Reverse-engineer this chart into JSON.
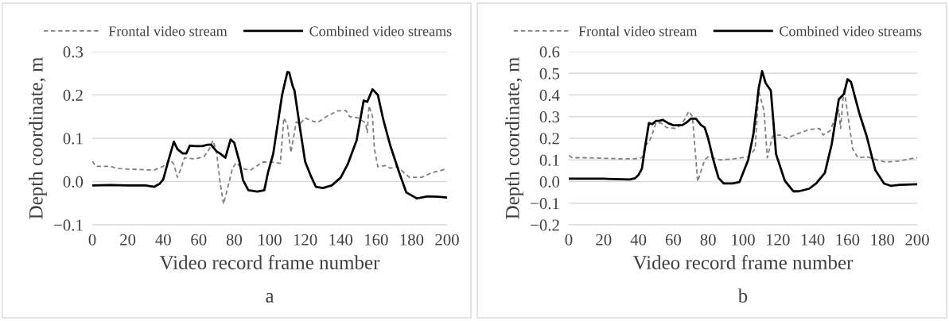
{
  "chart_data": [
    {
      "type": "line",
      "xlabel": "Video record frame number",
      "ylabel": "Depth coordinate, m",
      "annotations": [
        "a"
      ],
      "xlim": [
        0,
        200
      ],
      "xticks": [
        0,
        20,
        40,
        60,
        80,
        100,
        120,
        140,
        160,
        180,
        200
      ],
      "ylim": [
        -0.1,
        0.3
      ],
      "yticks": [
        {
          "value": -0.1,
          "label": "−0.1"
        },
        {
          "value": 0.0,
          "label": "0.0"
        },
        {
          "value": 0.1,
          "label": "0.1"
        },
        {
          "value": 0.2,
          "label": "0.2"
        },
        {
          "value": 0.3,
          "label": "0.3"
        }
      ],
      "grid": "y",
      "legend": "top",
      "marker": "none",
      "series": [
        {
          "name": "Frontal video stream",
          "color": "#808080",
          "line_style": "dashed",
          "x": [
            0,
            2,
            10,
            15,
            30,
            35,
            40,
            44,
            46,
            48,
            50,
            52,
            58,
            63,
            66,
            68,
            70,
            72,
            74,
            76,
            79,
            81,
            85,
            89,
            92,
            96,
            101,
            106,
            108,
            110,
            112,
            115,
            117,
            120,
            123,
            127,
            132,
            138,
            143,
            145,
            150,
            154,
            155,
            156,
            158,
            159,
            161,
            165,
            168,
            172,
            179,
            182,
            186,
            191,
            196,
            199
          ],
          "values": [
            0.047,
            0.035,
            0.035,
            0.03,
            0.027,
            0.027,
            0.035,
            0.05,
            0.04,
            0.01,
            0.03,
            0.055,
            0.052,
            0.058,
            0.075,
            0.095,
            0.07,
            0.0,
            -0.052,
            -0.02,
            0.03,
            0.043,
            0.03,
            0.026,
            0.034,
            0.045,
            0.045,
            0.042,
            0.147,
            0.13,
            0.067,
            0.138,
            0.132,
            0.147,
            0.141,
            0.136,
            0.15,
            0.163,
            0.164,
            0.15,
            0.147,
            0.135,
            0.113,
            0.175,
            0.15,
            0.077,
            0.034,
            0.037,
            0.031,
            0.034,
            0.009,
            0.01,
            0.01,
            0.02,
            0.025,
            0.029
          ]
        },
        {
          "name": "Combined video streams",
          "color": "#000000",
          "line_style": "solid",
          "x": [
            0,
            10,
            20,
            30,
            35,
            38,
            40,
            43,
            46,
            48,
            51,
            53,
            55,
            58,
            62,
            65,
            67,
            70,
            72,
            75,
            78,
            80,
            83,
            85,
            88,
            93,
            97,
            99,
            102,
            107,
            110,
            111,
            113,
            114,
            117,
            120,
            123,
            126,
            130,
            135,
            140,
            144,
            149,
            153,
            155,
            158,
            161,
            164,
            168,
            173,
            177,
            183,
            189,
            195,
            200
          ],
          "values": [
            -0.009,
            -0.008,
            -0.009,
            -0.009,
            -0.012,
            -0.005,
            0.005,
            0.05,
            0.092,
            0.075,
            0.065,
            0.065,
            0.083,
            0.082,
            0.082,
            0.085,
            0.085,
            0.07,
            0.065,
            0.055,
            0.097,
            0.09,
            0.045,
            0.003,
            -0.02,
            -0.023,
            -0.02,
            0.02,
            0.064,
            0.2,
            0.253,
            0.252,
            0.22,
            0.21,
            0.126,
            0.046,
            0.015,
            -0.012,
            -0.015,
            -0.009,
            0.009,
            0.04,
            0.095,
            0.187,
            0.184,
            0.213,
            0.2,
            0.144,
            0.083,
            0.021,
            -0.025,
            -0.039,
            -0.034,
            -0.035,
            -0.037
          ]
        }
      ]
    },
    {
      "type": "line",
      "xlabel": "Video record frame number",
      "ylabel": "Depth coordinate, m",
      "annotations": [
        "b"
      ],
      "xlim": [
        0,
        200
      ],
      "xticks": [
        0,
        20,
        40,
        60,
        80,
        100,
        120,
        140,
        160,
        180,
        200
      ],
      "ylim": [
        -0.2,
        0.6
      ],
      "yticks": [
        {
          "value": -0.2,
          "label": "−0.2"
        },
        {
          "value": -0.1,
          "label": "−0.1"
        },
        {
          "value": 0.0,
          "label": "0.0"
        },
        {
          "value": 0.1,
          "label": "0.1"
        },
        {
          "value": 0.2,
          "label": "0.2"
        },
        {
          "value": 0.3,
          "label": "0.3"
        },
        {
          "value": 0.4,
          "label": "0.4"
        },
        {
          "value": 0.5,
          "label": "0.5"
        },
        {
          "value": 0.6,
          "label": "0.6"
        }
      ],
      "grid": "y",
      "legend": "top",
      "marker": "none",
      "series": [
        {
          "name": "Frontal video stream",
          "color": "#808080",
          "line_style": "dashed",
          "x": [
            0,
            2,
            10,
            30,
            38,
            42,
            44,
            46,
            48,
            50,
            53,
            56,
            62,
            66,
            69,
            71,
            72,
            74,
            76,
            78,
            80,
            87,
            95,
            103,
            107,
            109,
            112,
            114,
            117,
            121,
            125,
            131,
            138,
            144,
            146,
            150,
            155,
            156,
            158,
            163,
            166,
            171,
            177,
            182,
            190,
            196,
            200
          ],
          "values": [
            0.12,
            0.11,
            0.11,
            0.105,
            0.105,
            0.11,
            0.17,
            0.18,
            0.22,
            0.27,
            0.27,
            0.25,
            0.245,
            0.28,
            0.325,
            0.3,
            0.2,
            0.0,
            0.05,
            0.1,
            0.115,
            0.1,
            0.105,
            0.115,
            0.15,
            0.42,
            0.33,
            0.11,
            0.21,
            0.215,
            0.2,
            0.22,
            0.24,
            0.245,
            0.215,
            0.235,
            0.33,
            0.245,
            0.43,
            0.15,
            0.11,
            0.115,
            0.1,
            0.09,
            0.095,
            0.105,
            0.11
          ]
        },
        {
          "name": "Combined video streams",
          "color": "#000000",
          "line_style": "solid",
          "x": [
            0,
            20,
            35,
            38,
            40,
            42,
            44,
            46,
            48,
            50,
            52,
            54,
            57,
            60,
            65,
            68,
            70,
            73,
            76,
            78,
            80,
            83,
            86,
            89,
            94,
            98,
            103,
            106,
            109,
            111,
            113,
            116,
            119,
            124,
            129,
            132,
            138,
            142,
            147,
            151,
            155,
            158,
            160,
            162,
            167,
            171,
            176,
            181,
            185,
            190,
            200
          ],
          "values": [
            0.013,
            0.013,
            0.01,
            0.015,
            0.03,
            0.06,
            0.17,
            0.27,
            0.265,
            0.28,
            0.28,
            0.285,
            0.27,
            0.26,
            0.26,
            0.275,
            0.29,
            0.29,
            0.26,
            0.25,
            0.2,
            0.1,
            0.016,
            -0.009,
            -0.009,
            -0.002,
            0.1,
            0.22,
            0.43,
            0.51,
            0.455,
            0.42,
            0.126,
            0.004,
            -0.045,
            -0.045,
            -0.033,
            -0.009,
            0.04,
            0.175,
            0.38,
            0.405,
            0.473,
            0.46,
            0.31,
            0.21,
            0.052,
            -0.009,
            -0.02,
            -0.015,
            -0.012
          ]
        }
      ]
    }
  ]
}
